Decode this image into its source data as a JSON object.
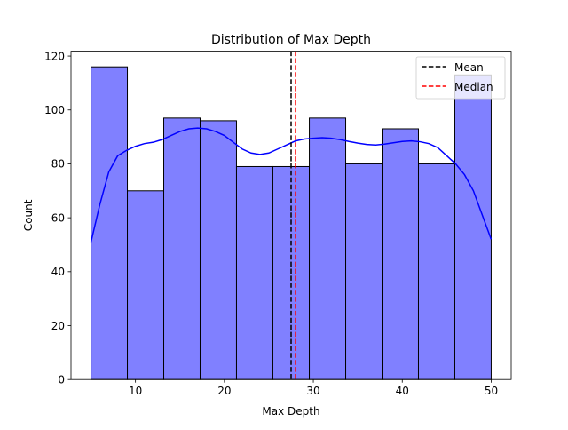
{
  "chart_data": {
    "type": "bar",
    "title": "Distribution of Max Depth",
    "xlabel": "Max Depth",
    "ylabel": "Count",
    "xlim": [
      2.75,
      52.25
    ],
    "ylim": [
      0,
      121.8
    ],
    "xticks": [
      10,
      20,
      30,
      40,
      50
    ],
    "yticks": [
      0,
      20,
      40,
      60,
      80,
      100,
      120
    ],
    "bin_edges": [
      5,
      9.09,
      13.18,
      17.27,
      21.36,
      25.45,
      29.55,
      33.64,
      37.73,
      41.82,
      45.91,
      50
    ],
    "counts": [
      116,
      70,
      97,
      96,
      79,
      79,
      97,
      80,
      93,
      80,
      113
    ],
    "bar_color": "#8080ff",
    "bar_edge_color": "#000000",
    "kde": {
      "color": "#0000ff",
      "x": [
        5,
        6,
        7,
        8,
        9,
        10,
        11,
        12,
        13,
        14,
        15,
        16,
        17,
        18,
        19,
        20,
        21,
        22,
        23,
        24,
        25,
        26,
        27,
        28,
        29,
        30,
        31,
        32,
        33,
        34,
        35,
        36,
        37,
        38,
        39,
        40,
        41,
        42,
        43,
        44,
        45,
        46,
        47,
        48,
        49,
        50
      ],
      "y": [
        51,
        65,
        77,
        83,
        85,
        86.5,
        87.5,
        88,
        89,
        90.5,
        92,
        93,
        93.3,
        93,
        92,
        90.5,
        88,
        85.5,
        84,
        83.5,
        84,
        85.5,
        87,
        88.5,
        89.2,
        89.5,
        89.7,
        89.5,
        89,
        88.3,
        87.7,
        87.2,
        87,
        87.3,
        87.8,
        88.3,
        88.5,
        88.2,
        87.5,
        86,
        83,
        80,
        76,
        70,
        61,
        52
      ]
    },
    "lines": [
      {
        "label": "Mean",
        "x": 27.5,
        "color": "#000000",
        "style": "dashed"
      },
      {
        "label": "Median",
        "x": 28.0,
        "color": "#ff0000",
        "style": "dashed"
      }
    ],
    "legend": {
      "position": "top-right",
      "entries": [
        {
          "label": "Mean",
          "color": "#000000"
        },
        {
          "label": "Median",
          "color": "#ff0000"
        }
      ]
    },
    "grid": false
  }
}
